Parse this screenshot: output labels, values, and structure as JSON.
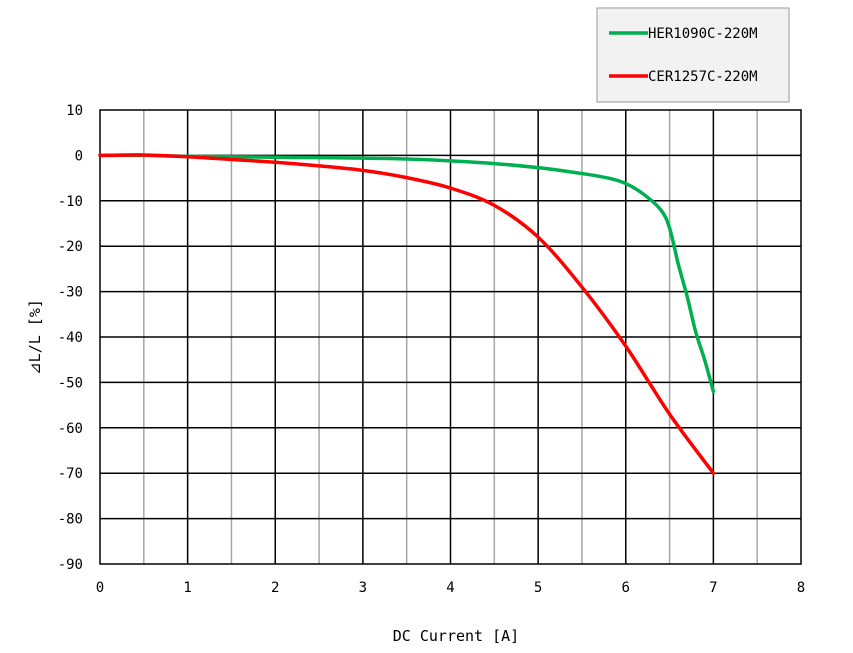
{
  "chart_data": {
    "type": "line",
    "title": "",
    "xlabel": "DC Current [A]",
    "ylabel": "⊿L/L [%]",
    "xlim": [
      0,
      8
    ],
    "ylim": [
      -90,
      10
    ],
    "x_ticks": [
      0,
      1,
      2,
      3,
      4,
      5,
      6,
      7,
      8
    ],
    "y_ticks": [
      10,
      0,
      -10,
      -20,
      -30,
      -40,
      -50,
      -60,
      -70,
      -80,
      -90
    ],
    "x_minor_step": 0.5,
    "grid": true,
    "legend_position": "top-right",
    "series": [
      {
        "name": "HER1090C-220M",
        "color": "#00b050",
        "points": [
          [
            0,
            0
          ],
          [
            0.5,
            0
          ],
          [
            1,
            -0.2
          ],
          [
            1.5,
            -0.3
          ],
          [
            2,
            -0.4
          ],
          [
            2.5,
            -0.5
          ],
          [
            3,
            -0.6
          ],
          [
            3.5,
            -0.8
          ],
          [
            4,
            -1.2
          ],
          [
            4.5,
            -1.8
          ],
          [
            5,
            -2.7
          ],
          [
            5.5,
            -4.0
          ],
          [
            5.8,
            -5.0
          ],
          [
            6,
            -6.2
          ],
          [
            6.2,
            -8.5
          ],
          [
            6.4,
            -12
          ],
          [
            6.5,
            -16
          ],
          [
            6.6,
            -24
          ],
          [
            6.7,
            -31
          ],
          [
            6.8,
            -39
          ],
          [
            6.9,
            -45
          ],
          [
            7,
            -52
          ]
        ]
      },
      {
        "name": "CER1257C-220M",
        "color": "#ff0000",
        "points": [
          [
            0,
            0
          ],
          [
            0.5,
            0.1
          ],
          [
            1,
            -0.3
          ],
          [
            1.5,
            -0.9
          ],
          [
            2,
            -1.5
          ],
          [
            2.5,
            -2.3
          ],
          [
            3,
            -3.3
          ],
          [
            3.5,
            -4.9
          ],
          [
            4,
            -7.2
          ],
          [
            4.5,
            -11
          ],
          [
            5,
            -18
          ],
          [
            5.5,
            -29
          ],
          [
            6,
            -42
          ],
          [
            6.5,
            -57
          ],
          [
            7,
            -70
          ]
        ]
      }
    ]
  }
}
